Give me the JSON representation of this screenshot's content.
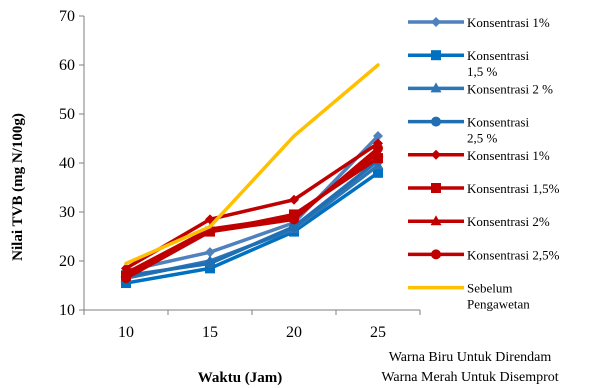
{
  "chart_data": {
    "type": "line",
    "x": [
      10,
      15,
      20,
      25
    ],
    "xlabel": "Waktu (Jam)",
    "ylabel": "Nilai TVB (mg N/100g)",
    "ylim": [
      10,
      70
    ],
    "yticks": [
      10,
      20,
      30,
      40,
      50,
      60,
      70
    ],
    "grid": false,
    "legend_position": "right",
    "series": [
      {
        "name": "Konsentrasi 1%",
        "label_lines": [
          "Konsentrasi 1%"
        ],
        "color": "#4F81BD",
        "marker": "diamond",
        "values": [
          18.0,
          21.8,
          27.8,
          45.5
        ]
      },
      {
        "name": "Konsentrasi 1,5 %",
        "label_lines": [
          "Konsentrasi",
          "1,5 %"
        ],
        "color": "#0070C0",
        "marker": "square",
        "values": [
          15.5,
          18.5,
          26.0,
          38.0
        ]
      },
      {
        "name": "Konsentrasi 2 %",
        "label_lines": [
          "Konsentrasi 2 %"
        ],
        "color": "#2E75B6",
        "marker": "triangle",
        "values": [
          16.5,
          20.0,
          26.5,
          39.5
        ]
      },
      {
        "name": "Konsentrasi 2,5 %",
        "label_lines": [
          "Konsentrasi",
          "2,5 %"
        ],
        "color": "#1F6FB2",
        "marker": "circle",
        "values": [
          17.0,
          19.5,
          27.0,
          40.5
        ]
      },
      {
        "name": "Konsentrasi 1%",
        "label_lines": [
          "Konsentrasi 1%"
        ],
        "color": "#C00000",
        "marker": "diamond",
        "values": [
          18.5,
          28.5,
          32.5,
          44.0
        ]
      },
      {
        "name": "Konsentrasi 1,5%",
        "label_lines": [
          "Konsentrasi 1,5%"
        ],
        "color": "#C00000",
        "marker": "square",
        "values": [
          17.0,
          26.0,
          29.5,
          41.0
        ]
      },
      {
        "name": "Konsentrasi 2%",
        "label_lines": [
          "Konsentrasi 2%"
        ],
        "color": "#C00000",
        "marker": "triangle",
        "values": [
          17.5,
          26.5,
          29.0,
          42.0
        ]
      },
      {
        "name": "Konsentrasi 2,5%",
        "label_lines": [
          "Konsentrasi 2,5%"
        ],
        "color": "#C00000",
        "marker": "circle",
        "values": [
          16.5,
          26.0,
          28.5,
          43.0
        ]
      },
      {
        "name": "Sebelum Pengawetan",
        "label_lines": [
          "Sebelum",
          "Pengawetan"
        ],
        "color": "#FFC000",
        "marker": "none",
        "values": [
          19.5,
          27.0,
          45.5,
          60.0
        ]
      }
    ],
    "annotations": [
      "Warna Biru Untuk Direndam",
      "Warna Merah Untuk Disemprot"
    ]
  }
}
